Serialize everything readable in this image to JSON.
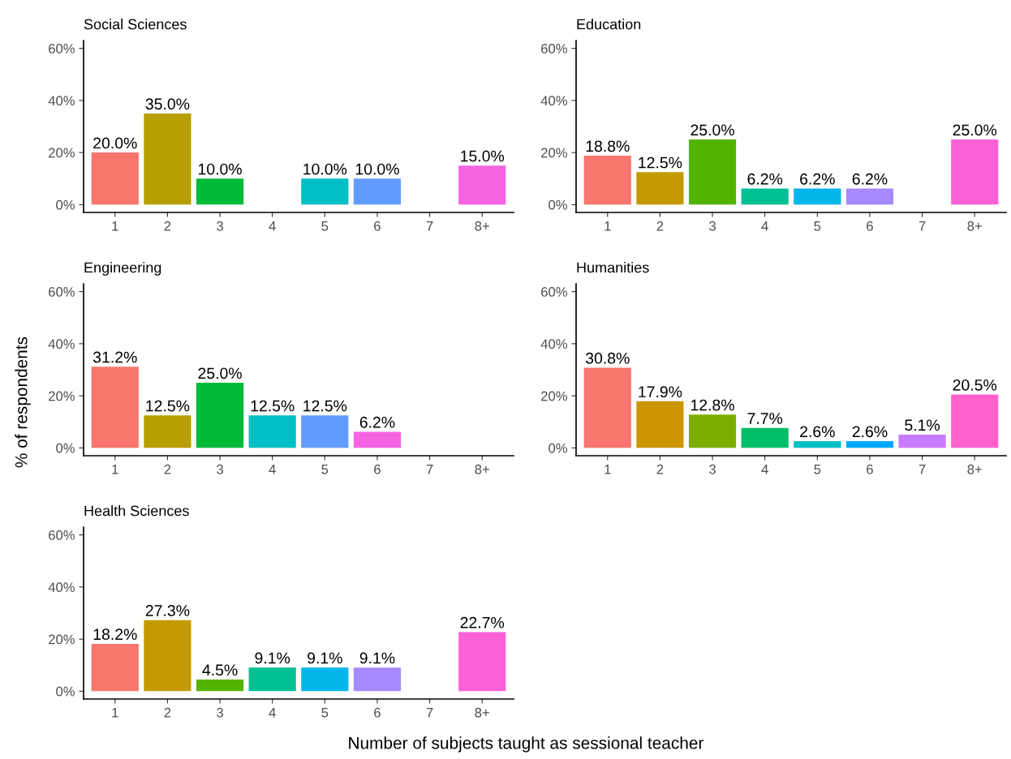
{
  "chart_data": [
    {
      "type": "bar",
      "title": "Social Sciences",
      "categories": [
        "1",
        "2",
        "3",
        "4",
        "5",
        "6",
        "7",
        "8+"
      ],
      "values": [
        20.0,
        35.0,
        10.0,
        null,
        10.0,
        10.0,
        null,
        15.0
      ],
      "colors": [
        "#F8766D",
        "#B79F00",
        "#00BA38",
        null,
        "#00BFC4",
        "#619CFF",
        null,
        "#F564E3"
      ],
      "value_labels": [
        "20.0%",
        "35.0%",
        "10.0%",
        null,
        "10.0%",
        "10.0%",
        null,
        "15.0%"
      ],
      "ylim": [
        -3,
        63
      ],
      "yticks": [
        {
          "value": 0,
          "label": "0%"
        },
        {
          "value": 20,
          "label": "20%"
        },
        {
          "value": 40,
          "label": "40%"
        },
        {
          "value": 60,
          "label": "60%"
        }
      ],
      "grid": false
    },
    {
      "type": "bar",
      "title": "Education",
      "categories": [
        "1",
        "2",
        "3",
        "4",
        "5",
        "6",
        "7",
        "8+"
      ],
      "values": [
        18.8,
        12.5,
        25.0,
        6.2,
        6.2,
        6.2,
        null,
        25.0
      ],
      "colors": [
        "#F8766D",
        "#C49A00",
        "#53B400",
        "#00C094",
        "#00B6EB",
        "#A58AFF",
        null,
        "#FB61D7"
      ],
      "value_labels": [
        "18.8%",
        "12.5%",
        "25.0%",
        "6.2%",
        "6.2%",
        "6.2%",
        null,
        "25.0%"
      ],
      "ylim": [
        -3,
        63
      ],
      "yticks": [
        {
          "value": 0,
          "label": "0%"
        },
        {
          "value": 20,
          "label": "20%"
        },
        {
          "value": 40,
          "label": "40%"
        },
        {
          "value": 60,
          "label": "60%"
        }
      ],
      "grid": false
    },
    {
      "type": "bar",
      "title": "Engineering",
      "ylabel": "% of respondents",
      "categories": [
        "1",
        "2",
        "3",
        "4",
        "5",
        "6",
        "7",
        "8+"
      ],
      "values": [
        31.2,
        12.5,
        25.0,
        12.5,
        12.5,
        6.2,
        null,
        null
      ],
      "colors": [
        "#F8766D",
        "#B79F00",
        "#00BA38",
        "#00BFC4",
        "#619CFF",
        "#F564E3",
        null,
        null
      ],
      "value_labels": [
        "31.2%",
        "12.5%",
        "25.0%",
        "12.5%",
        "12.5%",
        "6.2%",
        null,
        null
      ],
      "ylim": [
        -3,
        63
      ],
      "yticks": [
        {
          "value": 0,
          "label": "0%"
        },
        {
          "value": 20,
          "label": "20%"
        },
        {
          "value": 40,
          "label": "40%"
        },
        {
          "value": 60,
          "label": "60%"
        }
      ],
      "grid": false
    },
    {
      "type": "bar",
      "title": "Humanities",
      "categories": [
        "1",
        "2",
        "3",
        "4",
        "5",
        "6",
        "7",
        "8+"
      ],
      "values": [
        30.8,
        17.9,
        12.8,
        7.7,
        2.6,
        2.6,
        5.1,
        20.5
      ],
      "colors": [
        "#F8766D",
        "#CD9600",
        "#7CAE00",
        "#00BE67",
        "#00BFC4",
        "#00A9FF",
        "#C77CFF",
        "#FF61CC"
      ],
      "value_labels": [
        "30.8%",
        "17.9%",
        "12.8%",
        "7.7%",
        "2.6%",
        "2.6%",
        "5.1%",
        "20.5%"
      ],
      "ylim": [
        -3,
        63
      ],
      "yticks": [
        {
          "value": 0,
          "label": "0%"
        },
        {
          "value": 20,
          "label": "20%"
        },
        {
          "value": 40,
          "label": "40%"
        },
        {
          "value": 60,
          "label": "60%"
        }
      ],
      "grid": false
    },
    {
      "type": "bar",
      "title": "Health Sciences",
      "xlabel": "Number of subjects taught as sessional teacher",
      "categories": [
        "1",
        "2",
        "3",
        "4",
        "5",
        "6",
        "7",
        "8+"
      ],
      "values": [
        18.2,
        27.3,
        4.5,
        9.1,
        9.1,
        9.1,
        null,
        22.7
      ],
      "colors": [
        "#F8766D",
        "#C49A00",
        "#53B400",
        "#00C094",
        "#00B6EB",
        "#A58AFF",
        null,
        "#FB61D7"
      ],
      "value_labels": [
        "18.2%",
        "27.3%",
        "4.5%",
        "9.1%",
        "9.1%",
        "9.1%",
        null,
        "22.7%"
      ],
      "ylim": [
        -3,
        63
      ],
      "yticks": [
        {
          "value": 0,
          "label": "0%"
        },
        {
          "value": 20,
          "label": "20%"
        },
        {
          "value": 40,
          "label": "40%"
        },
        {
          "value": 60,
          "label": "60%"
        }
      ],
      "grid": false
    }
  ]
}
